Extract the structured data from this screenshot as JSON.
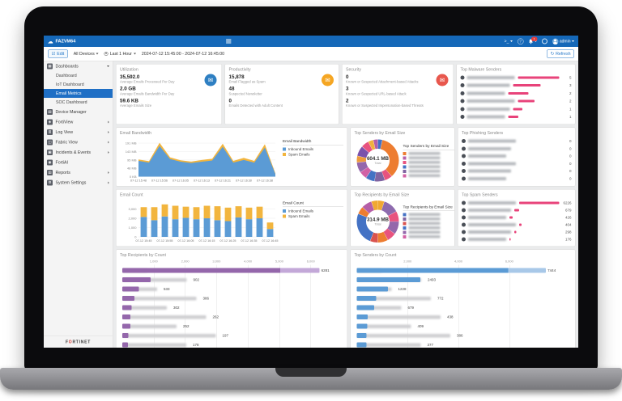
{
  "topbar": {
    "logo": "FAZVM64",
    "admin_label": "admin",
    "bell_badge": "1"
  },
  "icons": {
    "cloud": "☁",
    "terminal": ">_",
    "help": "?",
    "envelope": "✉",
    "check": "☑",
    "refresh": "↻",
    "glyph_map": {
      "dashboard-icon": "▦",
      "device-manager-icon": "▤",
      "fortiview-icon": "◈",
      "log-view-icon": "≣",
      "fabric-view-icon": "◫",
      "incidents-events-icon": "▣",
      "fortiai-icon": "◉",
      "reports-icon": "▥",
      "system-settings-icon": "⚙"
    }
  },
  "toolbar": {
    "edit_label": "Edit",
    "devices_label": "All Devices",
    "time_label": "Last 1 Hour",
    "date_range": "2024-07-12 15:45:00 - 2024-07-12 16:45:00",
    "refresh_label": "Refresh"
  },
  "sidebar": {
    "items": [
      {
        "label": "Dashboards",
        "icon": "dashboard-icon",
        "expanded": true,
        "children": [
          {
            "label": "Dashboard"
          },
          {
            "label": "IoT Dashboard"
          },
          {
            "label": "Email Metrics",
            "active": true
          },
          {
            "label": "SOC Dashboard"
          }
        ]
      },
      {
        "label": "Device Manager",
        "icon": "device-manager-icon"
      },
      {
        "label": "FortiView",
        "icon": "fortiview-icon",
        "arrow": true
      },
      {
        "label": "Log View",
        "icon": "log-view-icon",
        "arrow": true
      },
      {
        "label": "Fabric View",
        "icon": "fabric-view-icon",
        "arrow": true
      },
      {
        "label": "Incidents & Events",
        "icon": "incidents-events-icon",
        "arrow": true
      },
      {
        "label": "FortiAI",
        "icon": "fortiai-icon"
      },
      {
        "label": "Reports",
        "icon": "reports-icon",
        "arrow": true
      },
      {
        "label": "System Settings",
        "icon": "system-settings-icon",
        "arrow": true
      }
    ],
    "footer_logo": {
      "pre": "F",
      "o": "O",
      "post": "RTINET"
    }
  },
  "panels": {
    "utilization": {
      "title": "Utilization",
      "icon_color": "#2e7fc2",
      "stats": [
        {
          "value": "35,592.0",
          "label": "Average Emails Processed Per Day"
        },
        {
          "value": "2.0 GB",
          "label": "Average Emails Bandwidth Per Day"
        },
        {
          "value": "59.6 KB",
          "label": "Average Emails Size"
        }
      ]
    },
    "productivity": {
      "title": "Productivity",
      "icon_color": "#f5a623",
      "stats": [
        {
          "value": "15,878",
          "label": "Email Flagged as Spam"
        },
        {
          "value": "48",
          "label": "Suspected Newsletter"
        },
        {
          "value": "0",
          "label": "Emails Detected with Adult Content"
        }
      ]
    },
    "security": {
      "title": "Security",
      "icon_color": "#e8574d",
      "stats": [
        {
          "value": "0",
          "label": "Known or Suspected Attachment-based Attacks"
        },
        {
          "value": "3",
          "label": "Known or Suspected URL-based Attack"
        },
        {
          "value": "2",
          "label": "Known or Suspected Impersonation-based Threats"
        }
      ]
    }
  },
  "chart_data": {
    "email_bandwidth": {
      "type": "area",
      "title": "Email Bandwidth",
      "ylim": [
        0,
        205
      ],
      "yticks": [
        [
          191,
          "191 MB"
        ],
        [
          143,
          "143 MB"
        ],
        [
          95,
          "95 MB"
        ],
        [
          48,
          "48 MB"
        ],
        [
          0,
          "0 KB"
        ]
      ],
      "xticks": [
        "07-12 15:48",
        "07-12 15:56",
        "07-12 16:05",
        "07-12 16:13",
        "07-12 16:21",
        "07-12 16:30",
        "07-12 16:38"
      ],
      "series": [
        {
          "name": "Inbound Emails",
          "color": "#5b9bd5",
          "values": [
            90,
            80,
            175,
            100,
            85,
            78,
            85,
            92,
            170,
            80,
            95,
            80,
            165,
            15
          ]
        },
        {
          "name": "Spam Emails",
          "color": "#f2b53e",
          "values": [
            8,
            8,
            18,
            10,
            8,
            8,
            10,
            10,
            18,
            10,
            12,
            10,
            20,
            4
          ]
        }
      ],
      "legend": {
        "title": "Email Bandwidth",
        "entries": [
          {
            "label": "Inbound Emails",
            "color": "#5b9bd5"
          },
          {
            "label": "Spam Emails",
            "color": "#f2b53e"
          }
        ]
      }
    },
    "email_count": {
      "type": "stacked_bar",
      "title": "Email Count",
      "ylim": [
        0,
        3700
      ],
      "yticks": [
        [
          3000,
          "3,000"
        ],
        [
          2000,
          "2,000"
        ],
        [
          1000,
          "1,000"
        ],
        [
          0,
          "0"
        ]
      ],
      "xticks": [
        "07-12 15:45",
        "07-12 15:55",
        "07-12 16:05",
        "07-12 16:15",
        "07-12 16:25",
        "07-12 16:35",
        "07-12 16:45"
      ],
      "series": [
        {
          "name": "Inbound Emails",
          "color": "#5b9bd5",
          "values": [
            2150,
            1800,
            2200,
            1900,
            2050,
            1900,
            2000,
            1800,
            1700,
            2100,
            1900,
            2000,
            850
          ]
        },
        {
          "name": "Spam Emails",
          "color": "#f2b53e",
          "values": [
            1050,
            1400,
            1300,
            1450,
            1200,
            1300,
            1350,
            1500,
            1450,
            1200,
            1250,
            1250,
            700
          ]
        }
      ],
      "legend": {
        "title": "Email Count",
        "entries": [
          {
            "label": "Inbound Emails",
            "color": "#5b9bd5"
          },
          {
            "label": "Spam Emails",
            "color": "#f2b53e"
          }
        ]
      }
    },
    "top_senders_size": {
      "type": "pie",
      "title": "Top Senders by Email Size",
      "center_value": "604.1 MB",
      "center_label": "Total",
      "legend_title": "Top Senders by Email Size",
      "legend_colors": [
        "#ed7d31",
        "#b55fa8",
        "#e8537f",
        "#4472c4",
        "#8064a2",
        "#d161a5"
      ],
      "segments": [
        {
          "color": "#4472c4",
          "value": 3.5
        },
        {
          "color": "#ed7d31",
          "value": 35
        },
        {
          "color": "#e8537f",
          "value": 6
        },
        {
          "color": "#8064a2",
          "value": 8
        },
        {
          "color": "#4472c4",
          "value": 7
        },
        {
          "color": "#d161a5",
          "value": 6
        },
        {
          "color": "#9467ab",
          "value": 8
        },
        {
          "color": "#ed9a3c",
          "value": 5
        },
        {
          "color": "#7b52ab",
          "value": 8
        },
        {
          "color": "#e8537f",
          "value": 6
        },
        {
          "color": "#f0b13e",
          "value": 4
        },
        {
          "color": "#b55fa8",
          "value": 3.5
        }
      ]
    },
    "top_recipients_size": {
      "type": "pie",
      "title": "Top Recipients by Email Size",
      "center_value": "314.9 MB",
      "center_label": "Total",
      "legend_title": "Top Recipients by Email Size",
      "legend_colors": [
        "#4472c4",
        "#8064a2",
        "#d9534f",
        "#4472c4",
        "#9467ab",
        "#d161a5"
      ],
      "segments": [
        {
          "color": "#f0a832",
          "value": 5
        },
        {
          "color": "#8e6bae",
          "value": 12
        },
        {
          "color": "#e8537f",
          "value": 8
        },
        {
          "color": "#9467ab",
          "value": 10
        },
        {
          "color": "#e8537f",
          "value": 7
        },
        {
          "color": "#ed7d31",
          "value": 8
        },
        {
          "color": "#d9534f",
          "value": 6
        },
        {
          "color": "#4472c4",
          "value": 25
        },
        {
          "color": "#ed7d31",
          "value": 6
        },
        {
          "color": "#b55fa8",
          "value": 8
        },
        {
          "color": "#f0a832",
          "value": 5
        }
      ]
    },
    "top_malware_senders": {
      "type": "hbar_list",
      "title": "Top Malware Senders",
      "color": "#e8437a",
      "values": [
        5,
        3,
        2,
        2,
        1,
        1
      ]
    },
    "top_phishing_senders": {
      "type": "hbar_list",
      "title": "Top Phishing Senders",
      "color": "#e8437a",
      "values": [
        0,
        0,
        0,
        0,
        0,
        0
      ]
    },
    "top_spam_senders": {
      "type": "hbar_list",
      "title": "Top Spam Senders",
      "color": "#e8437a",
      "values": [
        6226,
        679,
        426,
        404,
        298,
        176
      ]
    },
    "top_recipients_count": {
      "type": "hbar_axis",
      "title": "Top Recipients by Count",
      "color": "#9467ab",
      "color_light": "#c3a8d8",
      "xlim": [
        0,
        6600
      ],
      "xticks": [
        [
          1000,
          "1,000"
        ],
        [
          2000,
          "2,000"
        ],
        [
          3000,
          "3,000"
        ],
        [
          4000,
          "4,000"
        ],
        [
          5000,
          "5,000"
        ],
        [
          6000,
          "6,000"
        ]
      ],
      "values": [
        6281,
        902,
        533,
        386,
        302,
        262,
        252,
        197,
        178,
        139
      ]
    },
    "top_senders_count": {
      "type": "hbar_axis",
      "title": "Top Senders by Count",
      "color": "#5b9bd5",
      "color_light": "#a8c8e8",
      "xlim": [
        0,
        7900
      ],
      "xticks": [
        [
          2000,
          "2,000"
        ],
        [
          4000,
          "4,000"
        ],
        [
          6000,
          "6,000"
        ]
      ],
      "values": [
        7444,
        2493,
        1228,
        772,
        679,
        438,
        409,
        386,
        377,
        339
      ]
    }
  }
}
